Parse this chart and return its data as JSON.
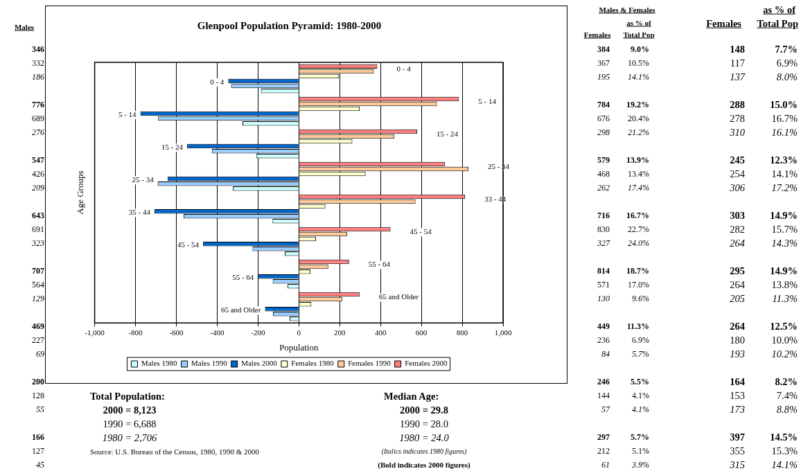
{
  "chart_data": {
    "type": "bar",
    "orientation": "horizontal",
    "title": "Glenpool Population Pyramid: 1980-2000",
    "xlabel": "Population",
    "ylabel": "Age Groups",
    "categories": [
      "0 - 4",
      "5 - 14",
      "15 - 24",
      "25 - 34",
      "35 - 44",
      "45 - 54",
      "55 - 64",
      "65 and Older"
    ],
    "series": [
      {
        "name": "Males 1980",
        "color": "#ccffff",
        "values": [
          -186,
          -276,
          -209,
          -323,
          -129,
          -69,
          -55,
          -45
        ]
      },
      {
        "name": "Males 1990",
        "color": "#99ccff",
        "values": [
          -332,
          -689,
          -426,
          -691,
          -564,
          -227,
          -128,
          -127
        ]
      },
      {
        "name": "Males 2000",
        "color": "#0066cc",
        "values": [
          -346,
          -776,
          -547,
          -643,
          -707,
          -469,
          -200,
          -166
        ]
      },
      {
        "name": "Females 1980",
        "color": "#ffffcc",
        "values": [
          195,
          298,
          262,
          327,
          130,
          84,
          57,
          61
        ]
      },
      {
        "name": "Females 1990",
        "color": "#ffcc99",
        "values": [
          367,
          676,
          468,
          830,
          571,
          236,
          144,
          212
        ]
      },
      {
        "name": "Females 2000",
        "color": "#ff8080",
        "values": [
          384,
          784,
          579,
          716,
          814,
          449,
          246,
          297
        ]
      }
    ],
    "xlim": [
      -1000,
      1000
    ],
    "xticks": [
      {
        "value": -1000,
        "label": "-1,000"
      },
      -800,
      -600,
      -400,
      -200,
      0,
      200,
      400,
      600,
      800,
      {
        "value": 1000,
        "label": "1,000"
      }
    ],
    "grid": "x",
    "legend": "bottom",
    "annotations": [
      "Males",
      "346",
      "332",
      "186",
      "776",
      "689",
      "276",
      "547",
      "426",
      "209",
      "643",
      "691",
      "323",
      "707",
      "564",
      "129",
      "469",
      "227",
      "69",
      "200",
      "128",
      "55",
      "166",
      "127",
      "45",
      "Males & Females",
      "as % of",
      "Females",
      "Total Pop",
      "384",
      "367",
      "195",
      "784",
      "676",
      "298",
      "579",
      "468",
      "262",
      "716",
      "830",
      "327",
      "814",
      "571",
      "130",
      "449",
      "236",
      "84",
      "246",
      "144",
      "57",
      "297",
      "212",
      "61",
      "9.0%",
      "10.5%",
      "14.1%",
      "19.2%",
      "20.4%",
      "21.2%",
      "13.9%",
      "13.4%",
      "17.4%",
      "16.7%",
      "22.7%",
      "24.0%",
      "18.7%",
      "17.0%",
      "9.6%",
      "11.3%",
      "6.9%",
      "5.7%",
      "5.5%",
      "4.1%",
      "4.1%",
      "5.7%",
      "5.1%",
      "3.9%",
      "as % of",
      "Females",
      "Total Pop",
      "148",
      "117",
      "137",
      "288",
      "278",
      "310",
      "245",
      "254",
      "306",
      "303",
      "282",
      "264",
      "295",
      "264",
      "205",
      "264",
      "180",
      "193",
      "164",
      "153",
      "173",
      "397",
      "355",
      "315",
      "7.7%",
      "6.9%",
      "8.0%",
      "15.0%",
      "16.7%",
      "16.1%",
      "12.3%",
      "14.1%",
      "17.2%",
      "14.9%",
      "15.7%",
      "14.3%",
      "14.9%",
      "13.8%",
      "11.3%",
      "12.5%",
      "10.0%",
      "10.2%",
      "8.2%",
      "7.4%",
      "8.8%",
      "14.5%",
      "15.3%",
      "14.1%",
      "Total Population:",
      "2000 = 8,123",
      "1990 = 6,688",
      "1980 = 2,706",
      "Source:  U.S. Bureau of the Census, 1980, 1990 & 2000",
      "Median Age:",
      "2000 = 29.8",
      "1990 = 28.0",
      "1980 = 24.0",
      "(Italics indicates 1980 figures)",
      "(Bold indicates 2000 figures)",
      "0 - 4",
      "5 - 14",
      "15 - 24",
      "25 - 34",
      "33 - 44",
      "45 - 54",
      "55 - 64",
      "65 and Older"
    ]
  }
}
